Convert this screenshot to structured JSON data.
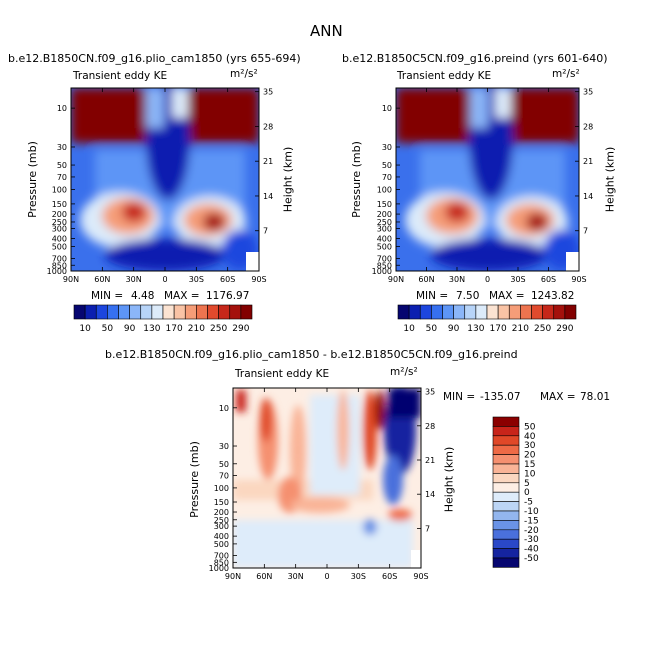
{
  "figure_title": "ANN",
  "chart_data": [
    {
      "type": "heatmap",
      "title": "b.e12.B1850CN.f09_g16.plio_cam1850 (yrs 655-694)",
      "subtitle_left": "Transient eddy KE",
      "units": "m²/s²",
      "xlabel": "",
      "ylabel": "Pressure (mb)",
      "ylabel_right": "Height (km)",
      "x_ticks": [
        "90N",
        "60N",
        "30N",
        "0",
        "30S",
        "60S",
        "90S"
      ],
      "y_ticks": [
        "10",
        "30",
        "50",
        "70",
        "100",
        "150",
        "200",
        "250",
        "300",
        "400",
        "500",
        "700",
        "850",
        "1000"
      ],
      "y_ticks_right": [
        "35",
        "28",
        "21",
        "14",
        "7"
      ],
      "min_label": "MIN =",
      "min_value": "4.48",
      "max_label": "MAX =",
      "max_value": "1176.97",
      "colorbar_ticks": [
        "10",
        "50",
        "90",
        "130",
        "170",
        "210",
        "250",
        "290"
      ],
      "colorbar_colors": [
        "#060670",
        "#0b1fb0",
        "#1c46de",
        "#3670f0",
        "#5d95f6",
        "#8bb6f8",
        "#b7d4f8",
        "#dcebfa",
        "#fbe3d2",
        "#f9c3a5",
        "#f59d78",
        "#ee744f",
        "#e14a2d",
        "#c6271a",
        "#a4110c",
        "#820000"
      ]
    },
    {
      "type": "heatmap",
      "title": "b.e12.B1850C5CN.f09_g16.preind (yrs 601-640)",
      "subtitle_left": "Transient eddy KE",
      "units": "m²/s²",
      "xlabel": "",
      "ylabel": "Pressure (mb)",
      "ylabel_right": "Height (km)",
      "x_ticks": [
        "90N",
        "60N",
        "30N",
        "0",
        "30S",
        "60S",
        "90S"
      ],
      "y_ticks": [
        "10",
        "30",
        "50",
        "70",
        "100",
        "150",
        "200",
        "250",
        "300",
        "400",
        "500",
        "700",
        "850",
        "1000"
      ],
      "y_ticks_right": [
        "35",
        "28",
        "21",
        "14",
        "7"
      ],
      "min_label": "MIN =",
      "min_value": "7.50",
      "max_label": "MAX =",
      "max_value": "1243.82",
      "colorbar_ticks": [
        "10",
        "50",
        "90",
        "130",
        "170",
        "210",
        "250",
        "290"
      ]
    },
    {
      "type": "heatmap",
      "title": "b.e12.B1850CN.f09_g16.plio_cam1850 - b.e12.B1850C5CN.f09_g16.preind",
      "subtitle_left": "Transient eddy KE",
      "units": "m²/s²",
      "xlabel": "",
      "ylabel": "Pressure (mb)",
      "ylabel_right": "Height (km)",
      "x_ticks": [
        "90N",
        "60N",
        "30N",
        "0",
        "30S",
        "60S",
        "90S"
      ],
      "y_ticks": [
        "10",
        "30",
        "50",
        "70",
        "100",
        "150",
        "200",
        "250",
        "300",
        "400",
        "500",
        "700",
        "850",
        "1000"
      ],
      "y_ticks_right": [
        "35",
        "28",
        "21",
        "14",
        "7"
      ],
      "min_label": "MIN =",
      "min_value": "-135.07",
      "max_label": "MAX =",
      "max_value": "78.01",
      "colorbar_ticks": [
        "50",
        "40",
        "30",
        "20",
        "15",
        "10",
        "5",
        "0",
        "-5",
        "-10",
        "-15",
        "-20",
        "-30",
        "-40",
        "-50"
      ],
      "colorbar_colors": [
        "#8b0000",
        "#c8241a",
        "#e04828",
        "#ee6a46",
        "#f59070",
        "#f9b497",
        "#fbd7c0",
        "#fdeee4",
        "#deecfa",
        "#bcd5f5",
        "#93b6ee",
        "#6a93e6",
        "#4a70dc",
        "#2a48c8",
        "#1524a0",
        "#060670"
      ]
    }
  ]
}
